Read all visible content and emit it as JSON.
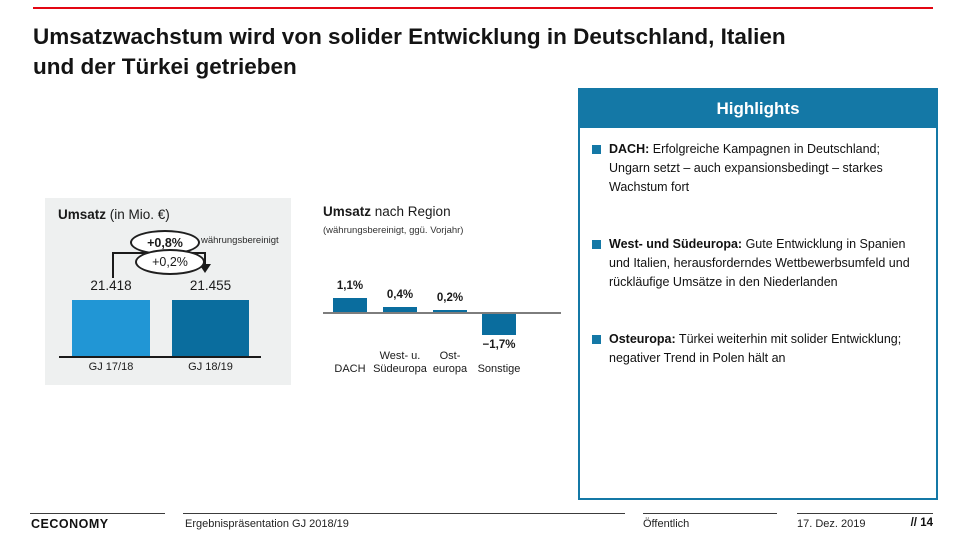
{
  "slide": {
    "title_lines": [
      "Umsatzwachstum wird von solider Entwicklung in Deutschland, Italien",
      "und der Türkei getrieben"
    ]
  },
  "umsatz_chart": {
    "title_bold": "Umsatz",
    "title_rest": " (in Mio. €)",
    "badge_top": "+0,8%",
    "badge_note": "währungsbereinigt",
    "badge_bottom": "+0,2%"
  },
  "region_chart": {
    "title_bold": "Umsatz",
    "title_rest": " nach Region",
    "subtitle": "(währungsbereinigt, ggü. Vorjahr)"
  },
  "highlights": {
    "title": "Highlights",
    "items": [
      {
        "lead": "DACH:",
        "text": "Erfolgreiche Kampagnen in Deutschland; Ungarn setzt – auch expansionsbedingt – starkes Wachstum fort"
      },
      {
        "lead": "West- und Südeuropa:",
        "text": "Gute Entwicklung in Spanien und Italien, herausforderndes Wettbewerbsumfeld und rückläufige Umsätze in den Niederlanden"
      },
      {
        "lead": "Osteuropa:",
        "text": "Türkei weiterhin mit solider Entwicklung; negativer Trend in Polen hält an"
      }
    ]
  },
  "footer": {
    "logo": "CECONOMY",
    "doc": "Ergebnispräsentation GJ 2018/19",
    "classification": "Öffentlich",
    "date": "17. Dez. 2019",
    "page": "// 14"
  },
  "chart_data": [
    {
      "type": "bar",
      "title": "Umsatz (in Mio. €)",
      "categories": [
        "GJ 17/18",
        "GJ 18/19"
      ],
      "values": [
        21418,
        21455
      ],
      "value_labels": [
        "21.418",
        "21.455"
      ],
      "annotations": [
        {
          "label": "+0,8%",
          "note": "währungsbereinigt"
        },
        {
          "label": "+0,2%",
          "note": ""
        }
      ],
      "bar_colors": [
        "#2196d5",
        "#0a6d9e"
      ],
      "ylabel": "Mio. €",
      "grid": false,
      "legend": "none"
    },
    {
      "type": "bar",
      "title": "Umsatz nach Region",
      "subtitle": "(währungsbereinigt, ggü. Vorjahr)",
      "categories": [
        "DACH",
        "West- u. Südeuropa",
        "Ost-europa",
        "Sonstige"
      ],
      "category_lines": [
        [
          "DACH"
        ],
        [
          "West- u.",
          "Südeuropa"
        ],
        [
          "Ost-",
          "europa"
        ],
        [
          "Sonstige"
        ]
      ],
      "values": [
        1.1,
        0.4,
        0.2,
        -1.7
      ],
      "value_labels": [
        "1,1%",
        "0,4%",
        "0,2%",
        "−1,7%"
      ],
      "unit": "%",
      "bar_color": "#0a6d9e",
      "ylim": [
        -2,
        1.5
      ],
      "grid": false,
      "legend": "none"
    }
  ],
  "colors": {
    "accent_red": "#e30613",
    "light_blue": "#2196d5",
    "bar_blue": "#0a6d9e",
    "panel_blue": "#1478a6",
    "panel_gray": "#eef0f0"
  }
}
